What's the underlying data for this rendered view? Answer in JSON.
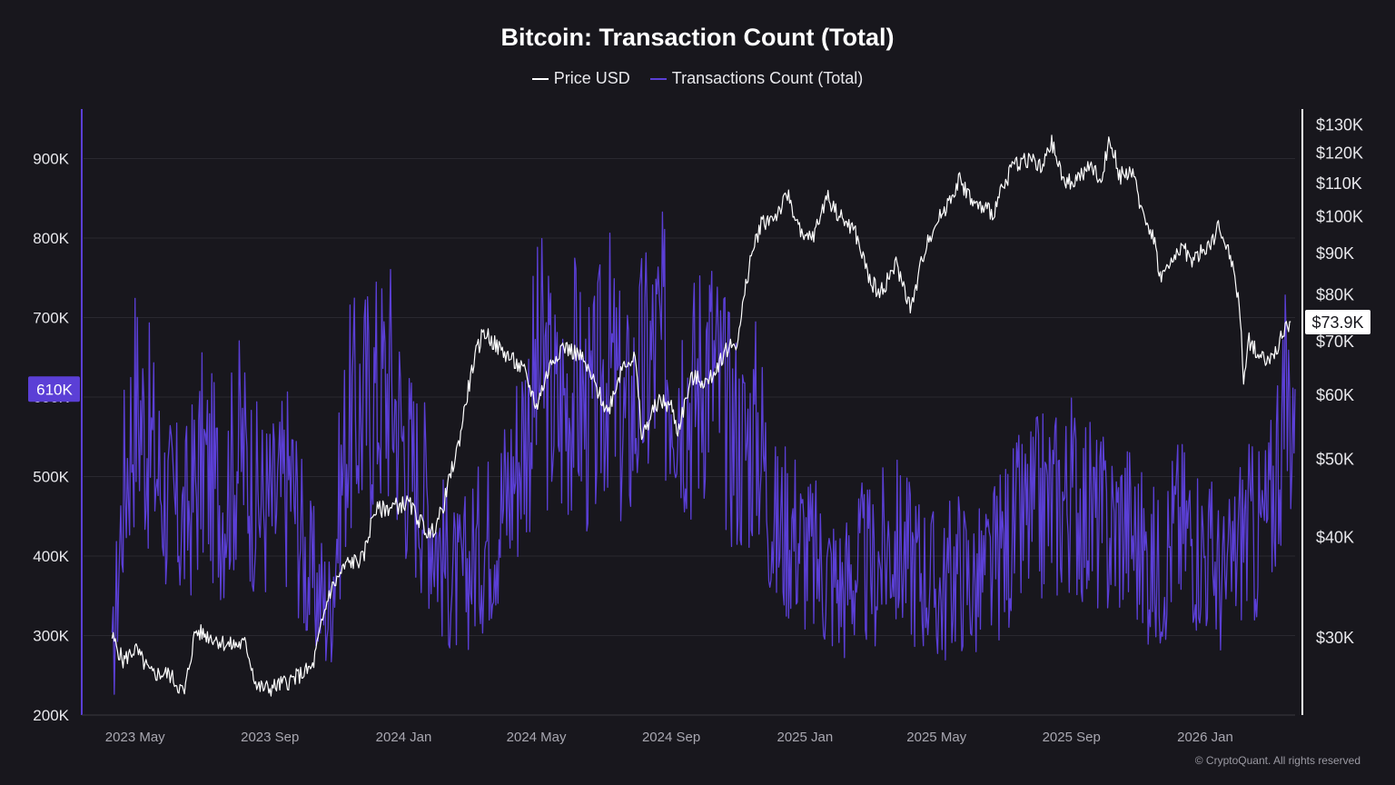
{
  "chart_data": {
    "type": "line",
    "title": "Bitcoin: Transaction Count (Total)",
    "legend_position": "top-center",
    "grid": true,
    "x_ticks": [
      "2023 May",
      "2023 Sep",
      "2024 Jan",
      "2024 May",
      "2024 Sep",
      "2025 Jan",
      "2025 May",
      "2025 Sep",
      "2026 Jan"
    ],
    "x_tick_dates": [
      "2023-05-01",
      "2023-09-01",
      "2024-01-01",
      "2024-05-01",
      "2024-09-01",
      "2025-01-01",
      "2025-05-01",
      "2025-09-01",
      "2026-01-01"
    ],
    "x_range": [
      "2023-03-15",
      "2026-03-24"
    ],
    "left_axis": {
      "ticks": [
        "200K",
        "300K",
        "400K",
        "500K",
        "600K",
        "700K",
        "800K",
        "900K"
      ],
      "tick_values": [
        200000,
        300000,
        400000,
        500000,
        600000,
        700000,
        800000,
        900000
      ],
      "range": [
        200000,
        960000
      ]
    },
    "right_axis": {
      "scale": "log",
      "ticks": [
        "$30K",
        "$40K",
        "$50K",
        "$60K",
        "$70K",
        "$80K",
        "$90K",
        "$100K",
        "$110K",
        "$120K",
        "$130K"
      ],
      "tick_values": [
        30000,
        40000,
        50000,
        60000,
        70000,
        80000,
        90000,
        100000,
        110000,
        120000,
        130000
      ],
      "range": [
        24000,
        135000
      ]
    },
    "series": [
      {
        "name": "Price USD",
        "axis": "right",
        "color": "#ffffff",
        "points": [
          [
            "2023-04-10",
            30000
          ],
          [
            "2023-04-20",
            28000
          ],
          [
            "2023-05-01",
            29000
          ],
          [
            "2023-05-15",
            27000
          ],
          [
            "2023-06-01",
            27000
          ],
          [
            "2023-06-15",
            25500
          ],
          [
            "2023-06-25",
            30500
          ],
          [
            "2023-07-10",
            30000
          ],
          [
            "2023-07-25",
            29300
          ],
          [
            "2023-08-10",
            29400
          ],
          [
            "2023-08-20",
            26000
          ],
          [
            "2023-09-01",
            25900
          ],
          [
            "2023-09-20",
            26500
          ],
          [
            "2023-10-10",
            27500
          ],
          [
            "2023-10-25",
            34000
          ],
          [
            "2023-11-10",
            37000
          ],
          [
            "2023-11-25",
            37500
          ],
          [
            "2023-12-05",
            43000
          ],
          [
            "2023-12-20",
            43500
          ],
          [
            "2024-01-05",
            44000
          ],
          [
            "2024-01-15",
            42000
          ],
          [
            "2024-01-25",
            40000
          ],
          [
            "2024-02-05",
            43000
          ],
          [
            "2024-02-20",
            52000
          ],
          [
            "2024-03-05",
            66000
          ],
          [
            "2024-03-14",
            72000
          ],
          [
            "2024-03-25",
            69000
          ],
          [
            "2024-04-05",
            67000
          ],
          [
            "2024-04-20",
            64000
          ],
          [
            "2024-05-01",
            58000
          ],
          [
            "2024-05-15",
            66000
          ],
          [
            "2024-05-25",
            69000
          ],
          [
            "2024-06-10",
            67000
          ],
          [
            "2024-06-25",
            61000
          ],
          [
            "2024-07-05",
            57000
          ],
          [
            "2024-07-20",
            66000
          ],
          [
            "2024-07-30",
            66500
          ],
          [
            "2024-08-05",
            53000
          ],
          [
            "2024-08-20",
            59000
          ],
          [
            "2024-09-01",
            58000
          ],
          [
            "2024-09-07",
            54000
          ],
          [
            "2024-09-20",
            63000
          ],
          [
            "2024-10-05",
            62000
          ],
          [
            "2024-10-20",
            68000
          ],
          [
            "2024-11-01",
            70000
          ],
          [
            "2024-11-12",
            88000
          ],
          [
            "2024-11-22",
            98000
          ],
          [
            "2024-12-05",
            100000
          ],
          [
            "2024-12-17",
            106000
          ],
          [
            "2024-12-30",
            93000
          ],
          [
            "2025-01-10",
            95000
          ],
          [
            "2025-01-21",
            106000
          ],
          [
            "2025-02-01",
            100000
          ],
          [
            "2025-02-15",
            96000
          ],
          [
            "2025-02-28",
            84000
          ],
          [
            "2025-03-10",
            80000
          ],
          [
            "2025-03-25",
            87000
          ],
          [
            "2025-04-08",
            76500
          ],
          [
            "2025-04-22",
            93000
          ],
          [
            "2025-05-10",
            103000
          ],
          [
            "2025-05-22",
            111000
          ],
          [
            "2025-06-05",
            103000
          ],
          [
            "2025-06-22",
            101000
          ],
          [
            "2025-07-10",
            116000
          ],
          [
            "2025-07-25",
            118000
          ],
          [
            "2025-08-05",
            114000
          ],
          [
            "2025-08-14",
            123000
          ],
          [
            "2025-08-25",
            110000
          ],
          [
            "2025-09-05",
            111000
          ],
          [
            "2025-09-20",
            115000
          ],
          [
            "2025-09-28",
            110000
          ],
          [
            "2025-10-06",
            125000
          ],
          [
            "2025-10-15",
            112000
          ],
          [
            "2025-10-25",
            114000
          ],
          [
            "2025-11-05",
            101000
          ],
          [
            "2025-11-15",
            94000
          ],
          [
            "2025-11-21",
            84000
          ],
          [
            "2025-12-01",
            87000
          ],
          [
            "2025-12-10",
            92000
          ],
          [
            "2025-12-20",
            88000
          ],
          [
            "2026-01-05",
            92000
          ],
          [
            "2026-01-14",
            97000
          ],
          [
            "2026-01-25",
            88000
          ],
          [
            "2026-02-01",
            78000
          ],
          [
            "2026-02-05",
            63000
          ],
          [
            "2026-02-10",
            70000
          ],
          [
            "2026-02-20",
            67000
          ],
          [
            "2026-03-01",
            66000
          ],
          [
            "2026-03-10",
            70000
          ],
          [
            "2026-03-20",
            73900
          ]
        ]
      },
      {
        "name": "Transactions Count (Total)",
        "axis": "left",
        "color": "#5b3fd6",
        "points": [
          [
            "2023-04-10",
            250000
          ],
          [
            "2023-04-20",
            480000
          ],
          [
            "2023-05-01",
            600000
          ],
          [
            "2023-05-15",
            540000
          ],
          [
            "2023-06-01",
            460000
          ],
          [
            "2023-06-15",
            440000
          ],
          [
            "2023-07-01",
            520000
          ],
          [
            "2023-07-20",
            470000
          ],
          [
            "2023-08-05",
            540000
          ],
          [
            "2023-08-20",
            470000
          ],
          [
            "2023-09-05",
            460000
          ],
          [
            "2023-09-20",
            500000
          ],
          [
            "2023-10-05",
            380000
          ],
          [
            "2023-10-25",
            330000
          ],
          [
            "2023-11-10",
            560000
          ],
          [
            "2023-12-01",
            600000
          ],
          [
            "2023-12-20",
            620000
          ],
          [
            "2024-01-05",
            520000
          ],
          [
            "2024-01-20",
            480000
          ],
          [
            "2024-02-05",
            400000
          ],
          [
            "2024-02-20",
            360000
          ],
          [
            "2024-03-05",
            400000
          ],
          [
            "2024-03-20",
            430000
          ],
          [
            "2024-04-05",
            480000
          ],
          [
            "2024-04-20",
            560000
          ],
          [
            "2024-05-05",
            640000
          ],
          [
            "2024-05-20",
            580000
          ],
          [
            "2024-06-05",
            620000
          ],
          [
            "2024-06-20",
            560000
          ],
          [
            "2024-07-05",
            650000
          ],
          [
            "2024-07-20",
            560000
          ],
          [
            "2024-08-05",
            620000
          ],
          [
            "2024-08-20",
            660000
          ],
          [
            "2024-09-05",
            640000
          ],
          [
            "2024-09-20",
            600000
          ],
          [
            "2024-10-05",
            660000
          ],
          [
            "2024-10-20",
            580000
          ],
          [
            "2024-11-05",
            540000
          ],
          [
            "2024-11-20",
            560000
          ],
          [
            "2024-12-05",
            430000
          ],
          [
            "2024-12-20",
            440000
          ],
          [
            "2025-01-05",
            400000
          ],
          [
            "2025-01-20",
            380000
          ],
          [
            "2025-02-05",
            360000
          ],
          [
            "2025-02-20",
            390000
          ],
          [
            "2025-03-05",
            380000
          ],
          [
            "2025-03-20",
            420000
          ],
          [
            "2025-04-05",
            400000
          ],
          [
            "2025-04-20",
            380000
          ],
          [
            "2025-05-05",
            350000
          ],
          [
            "2025-05-20",
            390000
          ],
          [
            "2025-06-05",
            360000
          ],
          [
            "2025-06-20",
            380000
          ],
          [
            "2025-07-05",
            420000
          ],
          [
            "2025-07-20",
            440000
          ],
          [
            "2025-08-05",
            460000
          ],
          [
            "2025-08-20",
            470000
          ],
          [
            "2025-09-05",
            480000
          ],
          [
            "2025-09-20",
            450000
          ],
          [
            "2025-10-05",
            430000
          ],
          [
            "2025-10-20",
            450000
          ],
          [
            "2025-11-05",
            400000
          ],
          [
            "2025-11-20",
            380000
          ],
          [
            "2025-12-05",
            440000
          ],
          [
            "2025-12-20",
            430000
          ],
          [
            "2026-01-05",
            400000
          ],
          [
            "2026-01-20",
            360000
          ],
          [
            "2026-02-05",
            440000
          ],
          [
            "2026-02-15",
            420000
          ],
          [
            "2026-03-01",
            450000
          ],
          [
            "2026-03-10",
            560000
          ],
          [
            "2026-03-24",
            610000
          ]
        ]
      }
    ],
    "current_labels": {
      "left": "610K",
      "right": "$73.9K"
    }
  },
  "footer": {
    "copyright": "© CryptoQuant. All rights reserved"
  },
  "watermark": "CryptoQuant"
}
